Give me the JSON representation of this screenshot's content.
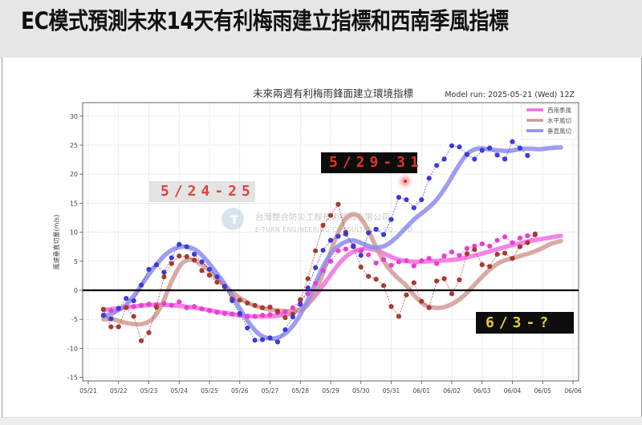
{
  "header": {
    "title": "EC模式預測未來14天有利梅雨建立指標和西南季風指標"
  },
  "chart": {
    "title": "未來兩週有利梅雨鋒面建立環境指標",
    "model_run": "Model run: 2025-05-21 (Wed) 12Z",
    "ylabel": "風速垂直切量(m/s)",
    "legend": [
      {
        "label": "西南季風",
        "color": "#ee44cc"
      },
      {
        "label": "水平風切",
        "color": "#c9847d"
      },
      {
        "label": "垂直風切",
        "color": "#8a8ae6"
      }
    ],
    "watermark": {
      "line1": "台灣整合防災工程技術顧問有限公司",
      "line2": "E-TURN ENGINEERING CONSULTANTS CO., LTD"
    },
    "y_ticks": [
      "30",
      "25",
      "20",
      "15",
      "10",
      "5",
      "0",
      "-5",
      "-10",
      "-15"
    ],
    "x_ticks": [
      "05/21",
      "05/22",
      "05/23",
      "05/24",
      "05/25",
      "05/26",
      "05/27",
      "05/28",
      "05/29",
      "05/30",
      "05/31",
      "06/01",
      "06/02",
      "06/03",
      "06/04",
      "06/05",
      "06/06"
    ]
  },
  "annotations": {
    "a": "5/24-25",
    "b": "5/29-31",
    "c": "6/3-?"
  },
  "colors": {
    "monsoon_dots": "#e83fd0",
    "monsoon_smooth": "#f36fe0",
    "horiz_dots": "#a83a30",
    "horiz_smooth": "#d29a94",
    "vert_dots": "#3b3bd6",
    "vert_smooth": "#8c8cee",
    "zero_line": "#000000"
  },
  "chart_data": {
    "type": "line",
    "title": "未來兩週有利梅雨鋒面建立環境指標",
    "subtitle": "Model run: 2025-05-21 (Wed) 12Z",
    "xlabel": "",
    "ylabel": "風速垂直切量(m/s)",
    "ylim": [
      -16,
      32
    ],
    "x_start_day": 0.25,
    "x_step_days": 0.25,
    "x_origin": "05/21",
    "grid": true,
    "legend_position": "upper right",
    "series": [
      {
        "name": "西南季風",
        "values": [
          -3.3,
          -3.5,
          -3.2,
          -2.9,
          -2.8,
          -2.6,
          -2.4,
          -2.5,
          -2.3,
          -2.6,
          -2.0,
          -3.0,
          -2.8,
          -3.2,
          -3.5,
          -3.8,
          -4.0,
          -4.1,
          -4.3,
          -4.5,
          -4.5,
          -4.3,
          -4.2,
          -3.9,
          -3.7,
          -3.0,
          -1.8,
          -0.6,
          1.2,
          3.4,
          5.0,
          6.8,
          7.1,
          7.7,
          6.8,
          6.1,
          4.7,
          5.3,
          4.3,
          4.9,
          5.1,
          4.2,
          5.1,
          5.5,
          4.6,
          5.9,
          6.6,
          6.0,
          7.2,
          7.6,
          8.0,
          7.6,
          8.6,
          9.2,
          8.2,
          9.0,
          9.4,
          9.5
        ]
      },
      {
        "name": "水平風切",
        "values": [
          -3.3,
          -6.3,
          -6.3,
          -3.0,
          -4.5,
          -8.7,
          -7.3,
          -2.9,
          2.3,
          4.6,
          5.9,
          5.8,
          5.2,
          3.4,
          2.6,
          1.4,
          0.7,
          -1.5,
          -1.7,
          -2.2,
          -2.6,
          -3.0,
          -2.9,
          -3.6,
          -4.7,
          -4.1,
          -1.6,
          2.0,
          6.8,
          11.2,
          12.9,
          14.8,
          10.0,
          7.5,
          4.0,
          2.4,
          1.9,
          0.8,
          -2.8,
          -4.5,
          -0.8,
          1.3,
          -1.9,
          -3.0,
          1.6,
          2.0,
          -0.6,
          1.8,
          6.3,
          7.0,
          4.4,
          4.1,
          6.2,
          6.4,
          5.5,
          7.5,
          8.2,
          9.7
        ]
      },
      {
        "name": "垂直風切",
        "values": [
          -4.3,
          -4.9,
          -3.1,
          -1.4,
          -1.8,
          0.9,
          3.6,
          4.4,
          3.1,
          5.6,
          7.9,
          7.5,
          6.2,
          4.9,
          3.6,
          2.3,
          0.6,
          -1.8,
          -4.0,
          -6.5,
          -8.6,
          -8.5,
          -8.2,
          -8.9,
          -6.8,
          -4.6,
          -2.4,
          0.4,
          3.9,
          6.9,
          8.6,
          9.3,
          9.7,
          7.6,
          6.0,
          9.9,
          10.5,
          9.6,
          12.2,
          16.0,
          15.6,
          14.2,
          15.6,
          19.3,
          21.5,
          22.6,
          24.9,
          24.7,
          23.4,
          22.6,
          24.1,
          24.5,
          23.3,
          22.6,
          25.6,
          24.5,
          23.2
        ]
      }
    ],
    "smoothed_series": [
      {
        "name": "西南季風(平滑)",
        "values": [
          -3.4,
          -3.2,
          -3.0,
          -2.8,
          -2.6,
          -2.5,
          -2.5,
          -2.6,
          -2.8,
          -3.0,
          -3.3,
          -3.6,
          -3.9,
          -4.2,
          -4.4,
          -4.5,
          -4.5,
          -4.4,
          -4.1,
          -3.6,
          -2.5,
          -0.6,
          1.8,
          4.2,
          6.0,
          6.9,
          7.2,
          6.8,
          6.0,
          5.3,
          5.0,
          4.9,
          5.0,
          5.1,
          5.2,
          5.4,
          5.8,
          6.2,
          6.7,
          7.2,
          7.7,
          8.1,
          8.5,
          8.8,
          9.1,
          9.4
        ]
      },
      {
        "name": "水平風切(平滑)",
        "values": [
          -5.0,
          -5.0,
          -5.5,
          -5.8,
          -5.8,
          -5.0,
          -2.5,
          1.5,
          4.5,
          5.3,
          4.6,
          3.2,
          1.5,
          0.0,
          -1.3,
          -2.3,
          -2.9,
          -3.3,
          -3.5,
          -3.6,
          -3.5,
          -2.5,
          0.5,
          5.0,
          9.5,
          12.5,
          13.0,
          11.0,
          7.5,
          4.5,
          2.5,
          1.0,
          -1.0,
          -2.5,
          -3.0,
          -2.9,
          -2.2,
          -1.0,
          0.7,
          2.5,
          4.0,
          5.0,
          5.5,
          6.0,
          6.5,
          7.2,
          8.0,
          8.5
        ]
      },
      {
        "name": "垂直風切(平滑)",
        "values": [
          -4.5,
          -3.8,
          -2.8,
          -0.8,
          1.8,
          4.2,
          6.2,
          7.3,
          7.5,
          6.8,
          5.0,
          2.7,
          0.2,
          -2.8,
          -5.6,
          -7.6,
          -8.3,
          -8.0,
          -6.6,
          -4.0,
          -0.4,
          3.6,
          6.6,
          8.1,
          8.6,
          8.0,
          7.4,
          7.6,
          8.8,
          10.6,
          12.4,
          13.8,
          15.5,
          18.0,
          21.0,
          23.5,
          24.4,
          24.3,
          24.1,
          24.0,
          24.3,
          24.4,
          24.3,
          24.5,
          24.6
        ]
      }
    ]
  }
}
